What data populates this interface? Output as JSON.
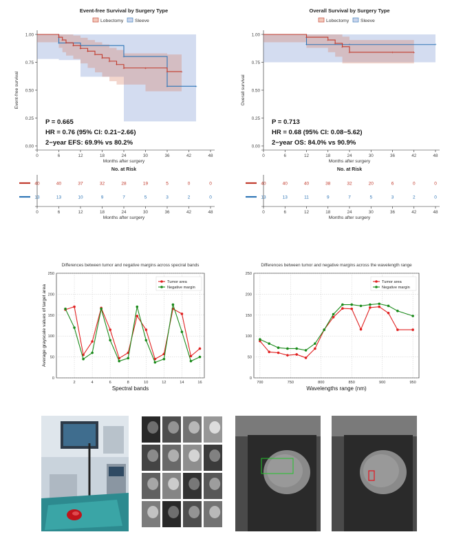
{
  "km": [
    {
      "title": "Event-free Survival by Surgery Type",
      "legend": [
        "Lobectomy",
        "Sleeve"
      ],
      "ylabel": "Event-free survival",
      "xlabel": "Months after surgery",
      "yticks": [
        "0.00",
        "0.25",
        "0.50",
        "0.75",
        "1.00"
      ],
      "xticks": [
        "0",
        "6",
        "12",
        "18",
        "24",
        "30",
        "36",
        "42",
        "48"
      ],
      "stats": [
        "P = 0.665",
        "HR = 0.76 (95% CI: 0.21−2.66)",
        "2−year EFS: 69.9% vs 80.2%"
      ],
      "risk_title": "No. at Risk",
      "risk_xlabel": "Months after surgery",
      "risk_lob": [
        "40",
        "40",
        "37",
        "32",
        "28",
        "19",
        "5",
        "0",
        "0"
      ],
      "risk_slv": [
        "13",
        "13",
        "10",
        "9",
        "7",
        "5",
        "3",
        "2",
        "0"
      ]
    },
    {
      "title": "Overall Survival by Surgery Type",
      "legend": [
        "Lobectomy",
        "Sleeve"
      ],
      "ylabel": "Overall survival",
      "xlabel": "Months after surgery",
      "yticks": [
        "0.00",
        "0.25",
        "0.50",
        "0.75",
        "1.00"
      ],
      "xticks": [
        "0",
        "6",
        "12",
        "18",
        "24",
        "30",
        "36",
        "42",
        "48"
      ],
      "stats": [
        "P = 0.713",
        "HR = 0.68 (95% CI: 0.08−5.62)",
        "2−year OS:  84.0% vs 90.9%"
      ],
      "risk_title": "No. at Risk",
      "risk_xlabel": "Months after surgery",
      "risk_lob": [
        "40",
        "40",
        "40",
        "38",
        "32",
        "20",
        "6",
        "0",
        "0"
      ],
      "risk_slv": [
        "13",
        "13",
        "11",
        "9",
        "7",
        "5",
        "3",
        "2",
        "0"
      ]
    }
  ],
  "lines": [
    {
      "title": "Differences between tumor and negative margins across speciral bands",
      "ylabel": "Average grayscale values of target area",
      "xlabel": "Spectral bands",
      "legend": [
        "Tumor area",
        "Negative margin"
      ],
      "xticks": [
        "2",
        "4",
        "6",
        "8",
        "10",
        "12",
        "14",
        "16"
      ],
      "yticks": [
        "0",
        "50",
        "100",
        "150",
        "200",
        "250"
      ]
    },
    {
      "title": "Differences between tumor and negative margins across the wavelength range",
      "ylabel": "Average grayscale values of target area",
      "xlabel": "Wavelengths range (nm)",
      "legend": [
        "Tumor area",
        "Negative margin"
      ],
      "xticks": [
        "700",
        "750",
        "800",
        "850",
        "900",
        "950"
      ],
      "yticks": [
        "0",
        "50",
        "100",
        "150",
        "200",
        "250"
      ]
    }
  ],
  "chart_data": [
    {
      "type": "line",
      "title": "Event-free Survival by Surgery Type",
      "xlabel": "Months after surgery",
      "ylabel": "Event-free survival",
      "xlim": [
        0,
        48
      ],
      "ylim": [
        0,
        1
      ],
      "series": [
        {
          "name": "Lobectomy",
          "color": "#c0392b",
          "x": [
            0,
            6,
            7,
            8,
            10,
            12,
            14,
            16,
            18,
            20,
            22,
            24,
            30,
            36,
            40
          ],
          "y": [
            1.0,
            0.975,
            0.95,
            0.925,
            0.9,
            0.875,
            0.85,
            0.82,
            0.79,
            0.76,
            0.73,
            0.699,
            0.699,
            0.666,
            0.666
          ],
          "ci_low": [
            1.0,
            0.93,
            0.88,
            0.84,
            0.81,
            0.78,
            0.74,
            0.7,
            0.66,
            0.62,
            0.58,
            0.55,
            0.55,
            0.49,
            0.49
          ],
          "ci_high": [
            1.0,
            1.0,
            1.0,
            1.0,
            0.99,
            0.97,
            0.95,
            0.93,
            0.91,
            0.88,
            0.86,
            0.83,
            0.83,
            0.82,
            0.82
          ]
        },
        {
          "name": "Sleeve",
          "color": "#2e75b6",
          "x": [
            0,
            6,
            12,
            24,
            36,
            44
          ],
          "y": [
            1.0,
            0.923,
            0.9,
            0.802,
            0.535,
            0.535
          ],
          "ci_low": [
            1.0,
            0.78,
            0.77,
            0.62,
            0.22,
            0.22
          ],
          "ci_high": [
            1.0,
            1.0,
            1.0,
            1.0,
            1.0,
            1.0
          ]
        }
      ]
    },
    {
      "type": "line",
      "title": "Overall Survival by Surgery Type",
      "xlabel": "Months after surgery",
      "ylabel": "Overall survival",
      "xlim": [
        0,
        48
      ],
      "ylim": [
        0,
        1
      ],
      "series": [
        {
          "name": "Lobectomy",
          "color": "#c0392b",
          "x": [
            0,
            12,
            18,
            20,
            22,
            24,
            36,
            42
          ],
          "y": [
            1.0,
            0.975,
            0.95,
            0.92,
            0.89,
            0.84,
            0.84,
            0.84
          ],
          "ci_low": [
            1.0,
            0.93,
            0.88,
            0.84,
            0.8,
            0.74,
            0.74,
            0.74
          ],
          "ci_high": [
            1.0,
            1.0,
            1.0,
            1.0,
            0.98,
            0.95,
            0.95,
            0.95
          ]
        },
        {
          "name": "Sleeve",
          "color": "#2e75b6",
          "x": [
            0,
            12,
            24,
            48
          ],
          "y": [
            1.0,
            0.909,
            0.909,
            0.909
          ],
          "ci_low": [
            1.0,
            0.75,
            0.75,
            0.75
          ],
          "ci_high": [
            1.0,
            1.0,
            1.0,
            1.0
          ]
        }
      ]
    },
    {
      "type": "line",
      "title": "Differences between tumor and negative margins across speciral bands",
      "xlabel": "Spectral bands",
      "ylabel": "Average grayscale values of target area",
      "xlim": [
        0,
        16.5
      ],
      "ylim": [
        0,
        250
      ],
      "x": [
        1,
        2,
        3,
        4,
        5,
        6,
        7,
        8,
        9,
        10,
        11,
        12,
        13,
        14,
        15,
        16
      ],
      "series": [
        {
          "name": "Tumor area",
          "color": "#e02020",
          "values": [
            163,
            170,
            55,
            87,
            167,
            115,
            47,
            60,
            148,
            115,
            45,
            57,
            165,
            153,
            52,
            70
          ]
        },
        {
          "name": "Negative margin",
          "color": "#1a8a1a",
          "values": [
            165,
            120,
            45,
            60,
            165,
            90,
            40,
            47,
            170,
            90,
            37,
            45,
            175,
            110,
            40,
            50
          ]
        }
      ]
    },
    {
      "type": "line",
      "title": "Differences between tumor and negative margins across the wavelength range",
      "xlabel": "Wavelengths range (nm)",
      "ylabel": "Average grayscale values of target area",
      "xlim": [
        690,
        960
      ],
      "ylim": [
        0,
        250
      ],
      "x": [
        700,
        715,
        730,
        745,
        760,
        775,
        790,
        805,
        820,
        835,
        850,
        865,
        880,
        895,
        910,
        925,
        950
      ],
      "series": [
        {
          "name": "Tumor area",
          "color": "#e02020",
          "values": [
            88,
            62,
            60,
            54,
            56,
            48,
            70,
            115,
            145,
            166,
            165,
            116,
            168,
            170,
            155,
            115,
            115
          ]
        },
        {
          "name": "Negative margin",
          "color": "#1a8a1a",
          "values": [
            92,
            82,
            72,
            70,
            70,
            66,
            82,
            115,
            152,
            175,
            175,
            172,
            175,
            177,
            172,
            160,
            148
          ]
        }
      ]
    }
  ]
}
